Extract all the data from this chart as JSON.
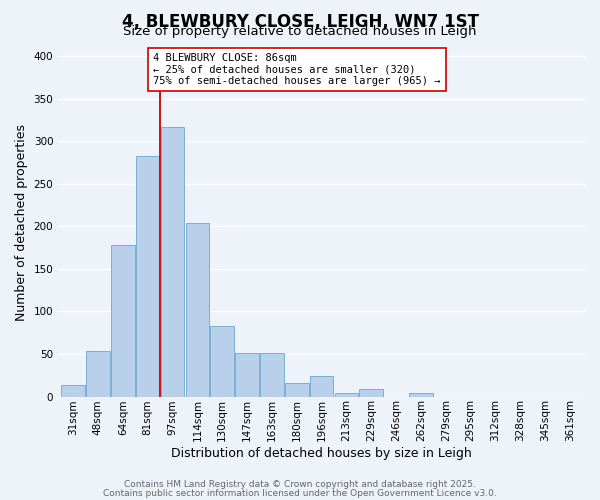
{
  "title": "4, BLEWBURY CLOSE, LEIGH, WN7 1ST",
  "subtitle": "Size of property relative to detached houses in Leigh",
  "xlabel": "Distribution of detached houses by size in Leigh",
  "ylabel": "Number of detached properties",
  "categories": [
    "31sqm",
    "48sqm",
    "64sqm",
    "81sqm",
    "97sqm",
    "114sqm",
    "130sqm",
    "147sqm",
    "163sqm",
    "180sqm",
    "196sqm",
    "213sqm",
    "229sqm",
    "246sqm",
    "262sqm",
    "279sqm",
    "295sqm",
    "312sqm",
    "328sqm",
    "345sqm",
    "361sqm"
  ],
  "values": [
    13,
    53,
    178,
    283,
    317,
    204,
    83,
    51,
    51,
    16,
    24,
    4,
    9,
    0,
    4,
    0,
    0,
    0,
    0,
    0,
    0
  ],
  "bar_color": "#b8d0ea",
  "bar_edge_color": "#7aafd4",
  "vline_x": 3.5,
  "vline_color": "#cc0000",
  "annotation_line1": "4 BLEWBURY CLOSE: 86sqm",
  "annotation_line2": "← 25% of detached houses are smaller (320)",
  "annotation_line3": "75% of semi-detached houses are larger (965) →",
  "annotation_box_color": "#ffffff",
  "annotation_box_edge": "#cc0000",
  "ylim": [
    0,
    410
  ],
  "yticks": [
    0,
    50,
    100,
    150,
    200,
    250,
    300,
    350,
    400
  ],
  "footer1": "Contains HM Land Registry data © Crown copyright and database right 2025.",
  "footer2": "Contains public sector information licensed under the Open Government Licence v3.0.",
  "background_color": "#eef2f9",
  "grid_color": "#ffffff",
  "title_fontsize": 12,
  "subtitle_fontsize": 9.5,
  "axis_label_fontsize": 9,
  "tick_fontsize": 7.5,
  "footer_fontsize": 6.5
}
